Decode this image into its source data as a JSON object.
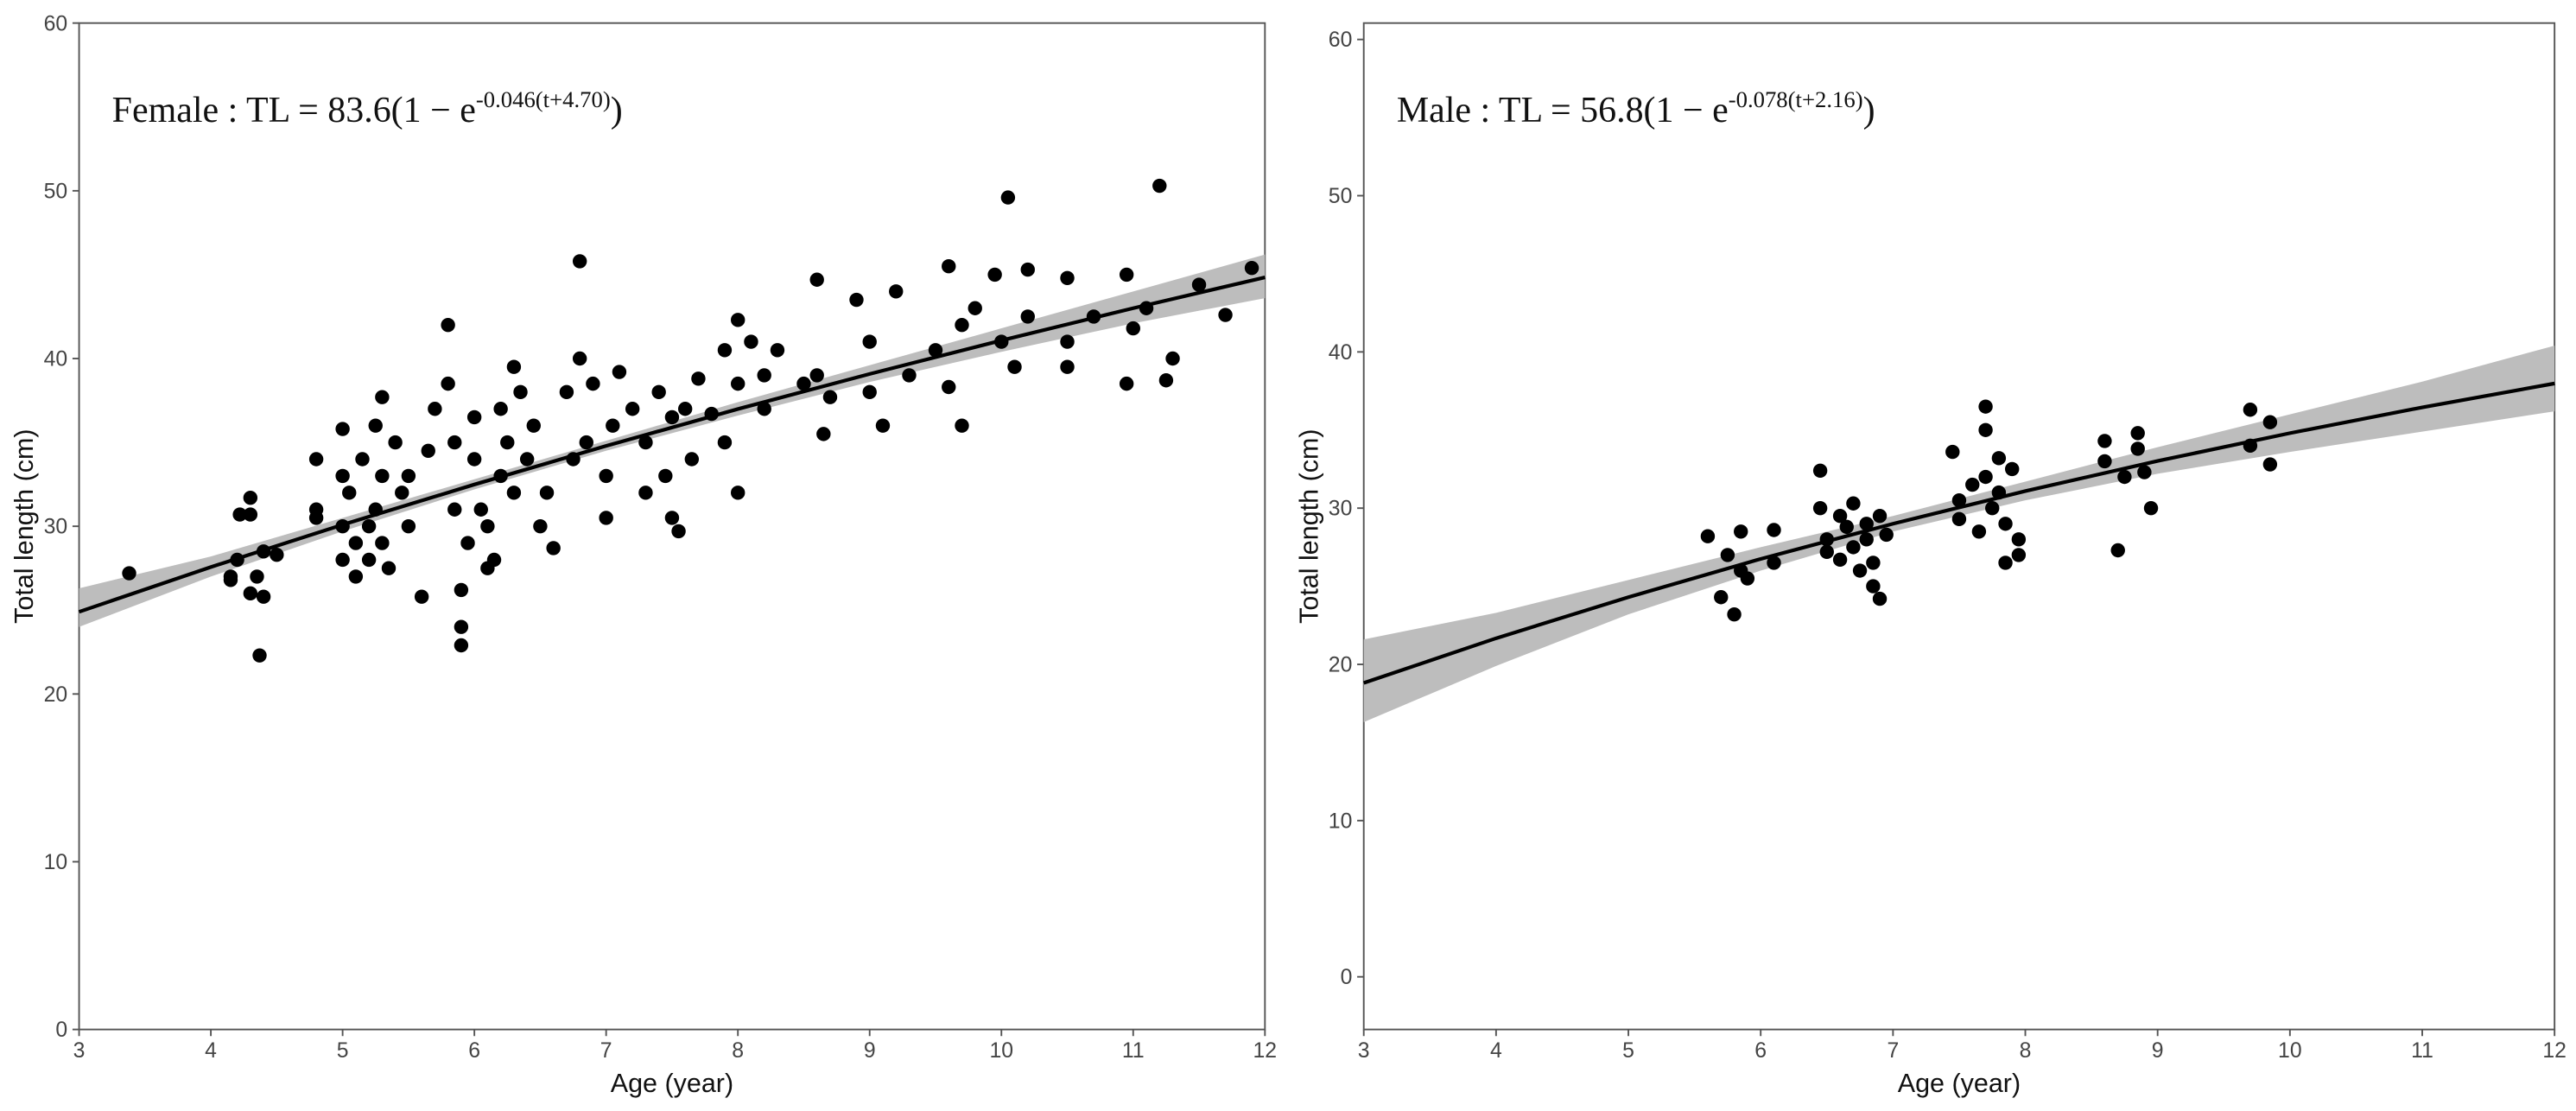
{
  "chart_data": [
    {
      "type": "scatter",
      "annotation": {
        "main": "Female : TL = 83.6(1 − e",
        "exponent": "-0.046(t+4.70)",
        "close": ")"
      },
      "x_label": "Age (year)",
      "y_label": "Total length (cm)",
      "xlim": [
        3,
        12
      ],
      "ylim": [
        0,
        60
      ],
      "xticks": [
        3,
        4,
        5,
        6,
        7,
        8,
        9,
        10,
        11,
        12
      ],
      "yticks": [
        0,
        10,
        20,
        30,
        40,
        50,
        60
      ],
      "points": {
        "color": "#000000",
        "x": [
          3.38,
          4.15,
          4.15,
          4.2,
          4.22,
          4.3,
          4.3,
          4.3,
          4.35,
          4.37,
          4.4,
          4.4,
          4.5,
          4.8,
          4.8,
          4.8,
          5.0,
          5.0,
          5.0,
          5.0,
          5.05,
          5.1,
          5.1,
          5.15,
          5.2,
          5.2,
          5.25,
          5.25,
          5.3,
          5.3,
          5.3,
          5.35,
          5.4,
          5.45,
          5.5,
          5.5,
          5.6,
          5.65,
          5.7,
          5.8,
          5.8,
          5.85,
          5.85,
          5.9,
          5.9,
          5.9,
          5.95,
          6.0,
          6.0,
          6.05,
          6.1,
          6.1,
          6.15,
          6.2,
          6.2,
          6.25,
          6.3,
          6.3,
          6.35,
          6.4,
          6.45,
          6.5,
          6.55,
          6.6,
          6.7,
          6.75,
          6.8,
          6.8,
          6.85,
          6.9,
          7.0,
          7.0,
          7.05,
          7.1,
          7.2,
          7.3,
          7.3,
          7.4,
          7.45,
          7.5,
          7.5,
          7.55,
          7.6,
          7.65,
          7.7,
          7.8,
          7.9,
          7.9,
          8.0,
          8.0,
          8.0,
          8.1,
          8.2,
          8.2,
          8.3,
          8.5,
          8.6,
          8.6,
          8.65,
          8.7,
          8.9,
          9.0,
          9.0,
          9.2,
          9.1,
          9.3,
          9.5,
          9.6,
          9.6,
          9.7,
          9.7,
          9.8,
          9.95,
          10.0,
          10.05,
          10.1,
          10.2,
          10.2,
          10.5,
          10.5,
          10.5,
          10.7,
          10.95,
          10.95,
          11.0,
          11.1,
          11.2,
          11.25,
          11.3,
          11.5,
          11.7,
          11.9
        ],
        "values": [
          27.2,
          27,
          26.8,
          28,
          30.7,
          31.7,
          30.7,
          26,
          27,
          22.3,
          28.5,
          25.8,
          28.3,
          31,
          34,
          30.5,
          35.8,
          33,
          30,
          28,
          32,
          29,
          27,
          34,
          30,
          28,
          36,
          31,
          37.7,
          33,
          29,
          27.5,
          35,
          32,
          30,
          33,
          25.8,
          34.5,
          37,
          42,
          38.5,
          35,
          31,
          26.2,
          24,
          22.9,
          29,
          36.5,
          34,
          31,
          30,
          27.5,
          28,
          37,
          33,
          35,
          32,
          39.5,
          38,
          34,
          36,
          30,
          32,
          28.7,
          38,
          34,
          45.8,
          40,
          35,
          38.5,
          33,
          30.5,
          36,
          39.2,
          37,
          35,
          32,
          38,
          33,
          30.5,
          36.5,
          29.7,
          37,
          34,
          38.8,
          36.7,
          40.5,
          35,
          42.3,
          38.5,
          32,
          41,
          37,
          39,
          40.5,
          38.5,
          44.7,
          39,
          35.5,
          37.7,
          43.5,
          38,
          41,
          44,
          36,
          39,
          40.5,
          45.5,
          38.3,
          36,
          42,
          43,
          45,
          41,
          49.6,
          39.5,
          45.3,
          42.5,
          41,
          44.8,
          39.5,
          42.5,
          45,
          38.5,
          41.8,
          43,
          50.3,
          38.7,
          40,
          44.4,
          42.6,
          45.4
        ]
      },
      "fit": {
        "color": "#000000",
        "x": [
          3,
          4,
          5,
          6,
          7,
          8,
          9,
          10,
          11,
          12
        ],
        "values": [
          24.9,
          27.57,
          30.09,
          32.49,
          34.79,
          36.99,
          39.08,
          41.08,
          43.0,
          44.84
        ]
      },
      "band": {
        "color": "#bdbdbd",
        "x": [
          3,
          4,
          5,
          6,
          7,
          8,
          9,
          10,
          11,
          12
        ],
        "lower": [
          24.0,
          27.0,
          29.7,
          32.2,
          34.5,
          36.6,
          38.6,
          40.4,
          42.1,
          43.6
        ],
        "upper": [
          26.3,
          28.2,
          30.5,
          32.8,
          35.1,
          37.4,
          39.6,
          41.8,
          44.0,
          46.2
        ]
      }
    },
    {
      "type": "scatter",
      "annotation": {
        "main": "Male : TL = 56.8(1 − e",
        "exponent": "-0.078(t+2.16)",
        "close": ")"
      },
      "x_label": "Age (year)",
      "y_label": "Total length (cm)",
      "xlim": [
        3,
        12
      ],
      "ylim": [
        -3.37,
        61.05
      ],
      "xticks": [
        3,
        4,
        5,
        6,
        7,
        8,
        9,
        10,
        11,
        12
      ],
      "yticks": [
        0,
        10,
        20,
        30,
        40,
        50,
        60
      ],
      "points": {
        "color": "#000000",
        "x": [
          5.6,
          5.7,
          5.75,
          5.8,
          5.85,
          5.85,
          5.9,
          6.1,
          6.1,
          6.45,
          6.45,
          6.5,
          6.5,
          6.6,
          6.6,
          6.65,
          6.7,
          6.7,
          6.75,
          6.8,
          6.8,
          6.85,
          6.85,
          6.9,
          6.9,
          6.95,
          7.45,
          7.5,
          7.5,
          7.6,
          7.65,
          7.7,
          7.7,
          7.7,
          7.75,
          7.8,
          7.8,
          7.85,
          7.85,
          7.9,
          7.95,
          7.95,
          8.6,
          8.6,
          8.7,
          8.75,
          8.85,
          8.85,
          8.95,
          8.9,
          9.7,
          9.7,
          9.85,
          9.85
        ],
        "values": [
          28.2,
          24.3,
          27,
          23.2,
          26,
          28.5,
          25.5,
          28.6,
          26.5,
          32.4,
          30,
          28,
          27.2,
          29.5,
          26.7,
          28.8,
          27.5,
          30.3,
          26,
          29,
          28,
          26.5,
          25,
          24.2,
          29.5,
          28.3,
          33.6,
          29.3,
          30.5,
          31.5,
          28.5,
          36.5,
          35,
          32,
          30,
          33.2,
          31,
          26.5,
          29,
          32.5,
          28,
          27,
          34.3,
          33,
          27.3,
          32,
          34.8,
          33.8,
          30,
          32.3,
          36.3,
          34,
          35.5,
          32.8
        ]
      },
      "fit": {
        "color": "#000000",
        "x": [
          3,
          4,
          5,
          6,
          7,
          8,
          9,
          10,
          11,
          12
        ],
        "values": [
          18.81,
          21.67,
          24.3,
          26.75,
          29.0,
          31.09,
          33.02,
          34.8,
          36.45,
          37.98
        ]
      },
      "band": {
        "color": "#bdbdbd",
        "x": [
          3,
          4,
          5,
          6,
          7,
          8,
          9,
          10,
          11,
          12
        ],
        "lower": [
          16.3,
          19.9,
          23.2,
          26.0,
          28.5,
          30.5,
          32.2,
          33.6,
          34.9,
          36.2
        ],
        "upper": [
          21.6,
          23.3,
          25.4,
          27.5,
          29.5,
          31.7,
          33.9,
          36.0,
          38.1,
          40.4
        ]
      }
    }
  ]
}
